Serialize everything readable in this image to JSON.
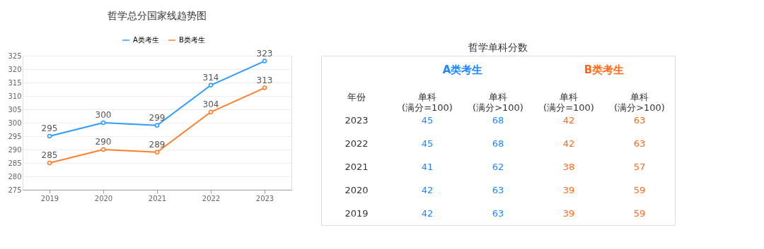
{
  "chart_data": [
    {
      "type": "line",
      "title": "哲学总分国家线趋势图",
      "categories": [
        "2019",
        "2020",
        "2021",
        "2022",
        "2023"
      ],
      "series": [
        {
          "name": "A类考生",
          "color": "#2f9bff",
          "values": [
            295,
            300,
            299,
            314,
            323
          ]
        },
        {
          "name": "B类考生",
          "color": "#ff7f2a",
          "values": [
            285,
            290,
            289,
            304,
            313
          ]
        }
      ],
      "ylim": [
        275,
        325
      ],
      "yticks": [
        275,
        280,
        285,
        290,
        295,
        300,
        305,
        310,
        315,
        320,
        325
      ],
      "grid": "y",
      "legend": "top",
      "marker": "circle",
      "line_style": "solid",
      "data_labels": true
    },
    {
      "type": "heatmap",
      "title": "哲学单科分数",
      "ylabel": "年份",
      "categories": [
        "单科\n(满分=100)",
        "单科\n(满分>100)",
        "单科\n(满分=100)",
        "单科\n(满分>100)"
      ],
      "y_categories": [
        "2023",
        "2022",
        "2021",
        "2020",
        "2019"
      ],
      "cells": [
        [
          45,
          68,
          42,
          63
        ],
        [
          45,
          68,
          42,
          63
        ],
        [
          41,
          62,
          38,
          57
        ],
        [
          42,
          63,
          39,
          59
        ],
        [
          42,
          63,
          39,
          59
        ]
      ],
      "colors": [
        "#1e88ff",
        "#1e88ff",
        "#ff6a1a",
        "#ff6a1a"
      ],
      "annotations": [
        "A类考生",
        "B类考生"
      ],
      "data_labels": true
    }
  ]
}
